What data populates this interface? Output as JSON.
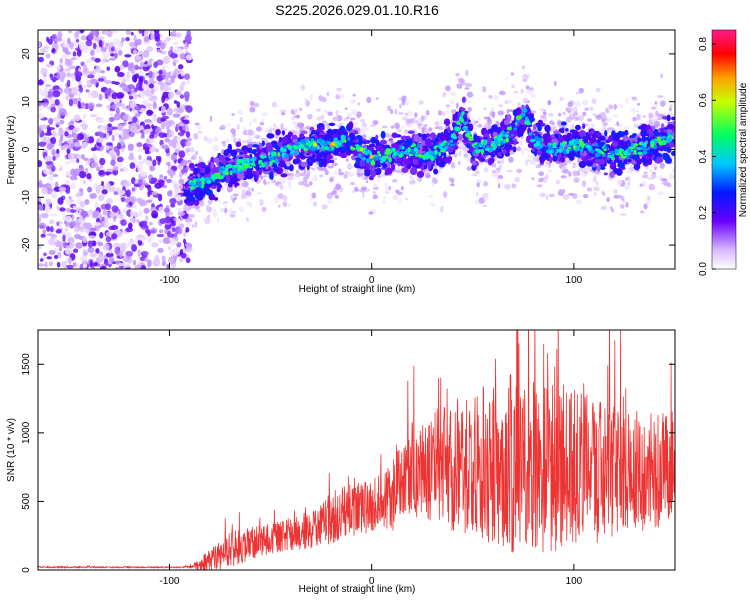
{
  "title": "S225.2026.029.01.10.R16",
  "chart_data": [
    {
      "type": "heatmap",
      "name": "spectrogram",
      "xlabel": "Height of straight line (km)",
      "ylabel": "Frequency (Hz)",
      "xlim": [
        -165,
        150
      ],
      "ylim": [
        -25,
        25
      ],
      "xticks": [
        -100,
        0,
        100
      ],
      "yticks": [
        -20,
        -10,
        0,
        10,
        20
      ],
      "ridge": {
        "x": [
          -90,
          -80,
          -70,
          -60,
          -50,
          -40,
          -30,
          -20,
          -15,
          -10,
          0,
          10,
          20,
          30,
          40,
          45,
          50,
          60,
          70,
          75,
          80,
          90,
          100,
          110,
          120,
          130,
          140,
          150
        ],
        "y": [
          -8,
          -6,
          -4,
          -3,
          -2,
          0,
          1,
          1,
          2,
          1,
          -2,
          -1,
          0,
          -1,
          2,
          7,
          0,
          1,
          4,
          8,
          2,
          0,
          1,
          0,
          -1,
          0,
          1,
          3
        ]
      },
      "colorbar": {
        "label": "Normalized spectral amplitude",
        "range": [
          0,
          0.85
        ],
        "ticks": [
          "0.0",
          "0.2",
          "0.4",
          "0.6",
          "0.8"
        ]
      }
    },
    {
      "type": "line",
      "name": "snr",
      "xlabel": "Height of straight line (km)",
      "ylabel": "SNR (10 * v/v)",
      "xlim": [
        -165,
        150
      ],
      "ylim": [
        0,
        1750
      ],
      "xticks": [
        -100,
        0,
        100
      ],
      "yticks": [
        0,
        500,
        1000,
        1500
      ],
      "color": "#ee3333",
      "envelope": {
        "x": [
          -165,
          -90,
          -80,
          -70,
          -60,
          -50,
          -40,
          -30,
          -20,
          -10,
          0,
          10,
          20,
          30,
          40,
          50,
          60,
          70,
          80,
          90,
          100,
          110,
          120,
          130,
          140,
          150
        ],
        "base": [
          20,
          20,
          60,
          150,
          190,
          230,
          260,
          300,
          380,
          430,
          460,
          520,
          740,
          740,
          760,
          780,
          780,
          780,
          760,
          760,
          740,
          720,
          720,
          720,
          720,
          760
        ],
        "amp": [
          6,
          6,
          90,
          130,
          120,
          110,
          120,
          140,
          190,
          200,
          190,
          260,
          340,
          400,
          480,
          560,
          620,
          660,
          640,
          620,
          580,
          530,
          480,
          450,
          420,
          420
        ]
      }
    }
  ]
}
